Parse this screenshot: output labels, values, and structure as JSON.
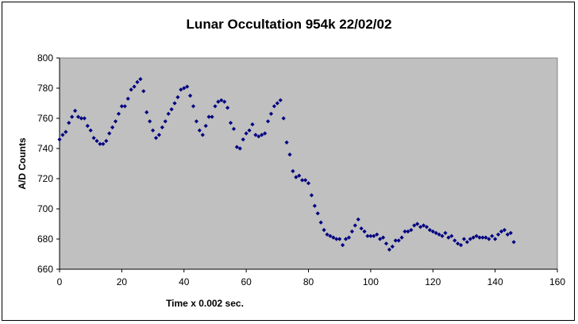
{
  "chart_data": {
    "type": "scatter",
    "title": "Lunar Occultation 954k  22/02/02",
    "xlabel": "Time x 0.002 sec.",
    "ylabel": "A/D Counts",
    "xlim": [
      0,
      160
    ],
    "ylim": [
      660,
      800
    ],
    "x_ticks": [
      0,
      20,
      40,
      60,
      80,
      100,
      120,
      140,
      160
    ],
    "y_ticks": [
      660,
      680,
      700,
      720,
      740,
      760,
      780,
      800
    ],
    "grid": false,
    "legend": "none",
    "plot_background": "#c0c0c0",
    "marker_color": "#000080",
    "marker": "diamond",
    "x": [
      0,
      1,
      2,
      3,
      4,
      5,
      6,
      7,
      8,
      9,
      10,
      11,
      12,
      13,
      14,
      15,
      16,
      17,
      18,
      19,
      20,
      21,
      22,
      23,
      24,
      25,
      26,
      27,
      28,
      29,
      30,
      31,
      32,
      33,
      34,
      35,
      36,
      37,
      38,
      39,
      40,
      41,
      42,
      43,
      44,
      45,
      46,
      47,
      48,
      49,
      50,
      51,
      52,
      53,
      54,
      55,
      56,
      57,
      58,
      59,
      60,
      61,
      62,
      63,
      64,
      65,
      66,
      67,
      68,
      69,
      70,
      71,
      72,
      73,
      74,
      75,
      76,
      77,
      78,
      79,
      80,
      81,
      82,
      83,
      84,
      85,
      86,
      87,
      88,
      89,
      90,
      91,
      92,
      93,
      94,
      95,
      96,
      97,
      98,
      99,
      100,
      101,
      102,
      103,
      104,
      105,
      106,
      107,
      108,
      109,
      110,
      111,
      112,
      113,
      114,
      115,
      116,
      117,
      118,
      119,
      120,
      121,
      122,
      123,
      124,
      125,
      126,
      127,
      128,
      129,
      130,
      131,
      132,
      133,
      134,
      135,
      136,
      137,
      138,
      139,
      140,
      141,
      142,
      143,
      144,
      145,
      146
    ],
    "y": [
      746,
      749,
      751,
      757,
      761,
      765,
      761,
      760,
      760,
      755,
      752,
      747,
      745,
      743,
      743,
      745,
      750,
      754,
      758,
      763,
      768,
      768,
      773,
      779,
      781,
      784,
      786,
      778,
      764,
      758,
      752,
      747,
      749,
      754,
      758,
      763,
      766,
      770,
      774,
      779,
      780,
      781,
      775,
      768,
      758,
      752,
      749,
      755,
      761,
      761,
      768,
      771,
      772,
      771,
      767,
      757,
      753,
      741,
      740,
      746,
      750,
      752,
      756,
      749,
      748,
      749,
      750,
      758,
      763,
      768,
      770,
      772,
      760,
      744,
      736,
      725,
      721,
      722,
      719,
      719,
      717,
      709,
      702,
      697,
      691,
      686,
      683,
      682,
      681,
      680,
      680,
      676,
      680,
      681,
      685,
      689,
      693,
      687,
      685,
      682,
      682,
      682,
      683,
      680,
      681,
      677,
      673,
      675,
      679,
      679,
      681,
      685,
      685,
      686,
      689,
      690,
      688,
      689,
      688,
      686,
      685,
      684,
      683,
      682,
      684,
      681,
      682,
      679,
      677,
      676,
      680,
      678,
      680,
      681,
      682,
      681,
      681,
      681,
      680,
      682,
      680,
      683,
      685,
      686,
      683,
      684,
      678
    ]
  }
}
